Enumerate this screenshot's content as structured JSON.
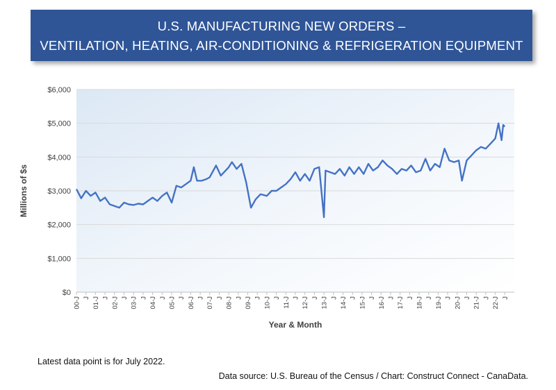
{
  "header": {
    "title_line1": "U.S. MANUFACTURING NEW ORDERS –",
    "title_line2": "VENTILATION, HEATING, AIR-CONDITIONING & REFRIGERATION EQUIPMENT"
  },
  "footer": {
    "note": "Latest data point is for July 2022.",
    "source": "Data source: U.S. Bureau of the Census / Chart: Construct Connect - CanaData."
  },
  "colors": {
    "title_bg": "#2f5597",
    "line": "#4472c4",
    "grid": "#d9d9d9"
  },
  "chart_data": {
    "type": "line",
    "xlabel": "Year & Month",
    "ylabel": "Millions of $s",
    "ylim": [
      0,
      6000
    ],
    "yticks": [
      0,
      1000,
      2000,
      3000,
      4000,
      5000,
      6000
    ],
    "ytick_labels": [
      "$0",
      "$1,000",
      "$2,000",
      "$3,000",
      "$4,000",
      "$5,000",
      "$6,000"
    ],
    "xtick_labels": [
      "00-J",
      "J",
      "01-J",
      "J",
      "02-J",
      "J",
      "03-J",
      "J",
      "04-J",
      "J",
      "05-J",
      "J",
      "06-J",
      "J",
      "07-J",
      "J",
      "08-J",
      "J",
      "09-J",
      "J",
      "10-J",
      "J",
      "11-J",
      "J",
      "12-J",
      "J",
      "13-J",
      "J",
      "14-J",
      "J",
      "15-J",
      "J",
      "16-J",
      "J",
      "17-J",
      "J",
      "18-J",
      "J",
      "19-J",
      "J",
      "20-J",
      "J",
      "21-J",
      "J",
      "22-J",
      "J"
    ],
    "grid": true,
    "legend": "none",
    "x_start": "2000-01",
    "x_end": "2022-07",
    "series": [
      {
        "anchors": [
          [
            "2000-01",
            3050
          ],
          [
            "2000-04",
            2780
          ],
          [
            "2000-07",
            3000
          ],
          [
            "2000-10",
            2850
          ],
          [
            "2001-01",
            2950
          ],
          [
            "2001-04",
            2700
          ],
          [
            "2001-07",
            2800
          ],
          [
            "2001-10",
            2600
          ],
          [
            "2002-01",
            2550
          ],
          [
            "2002-04",
            2500
          ],
          [
            "2002-07",
            2650
          ],
          [
            "2002-10",
            2600
          ],
          [
            "2003-01",
            2580
          ],
          [
            "2003-04",
            2620
          ],
          [
            "2003-07",
            2600
          ],
          [
            "2003-10",
            2700
          ],
          [
            "2004-01",
            2800
          ],
          [
            "2004-04",
            2700
          ],
          [
            "2004-07",
            2850
          ],
          [
            "2004-10",
            2950
          ],
          [
            "2005-01",
            2650
          ],
          [
            "2005-04",
            3150
          ],
          [
            "2005-07",
            3100
          ],
          [
            "2005-10",
            3200
          ],
          [
            "2006-01",
            3300
          ],
          [
            "2006-03",
            3700
          ],
          [
            "2006-05",
            3300
          ],
          [
            "2006-08",
            3300
          ],
          [
            "2006-11",
            3350
          ],
          [
            "2007-01",
            3400
          ],
          [
            "2007-05",
            3750
          ],
          [
            "2007-08",
            3450
          ],
          [
            "2007-11",
            3600
          ],
          [
            "2008-01",
            3700
          ],
          [
            "2008-03",
            3850
          ],
          [
            "2008-06",
            3650
          ],
          [
            "2008-09",
            3800
          ],
          [
            "2008-12",
            3250
          ],
          [
            "2009-03",
            2500
          ],
          [
            "2009-06",
            2750
          ],
          [
            "2009-09",
            2900
          ],
          [
            "2010-01",
            2850
          ],
          [
            "2010-04",
            3000
          ],
          [
            "2010-07",
            3000
          ],
          [
            "2010-10",
            3100
          ],
          [
            "2011-01",
            3200
          ],
          [
            "2011-04",
            3350
          ],
          [
            "2011-07",
            3550
          ],
          [
            "2011-10",
            3300
          ],
          [
            "2012-01",
            3500
          ],
          [
            "2012-04",
            3300
          ],
          [
            "2012-07",
            3650
          ],
          [
            "2012-10",
            3700
          ],
          [
            "2013-01",
            2220
          ],
          [
            "2013-02",
            3600
          ],
          [
            "2013-05",
            3550
          ],
          [
            "2013-08",
            3500
          ],
          [
            "2013-11",
            3650
          ],
          [
            "2014-02",
            3450
          ],
          [
            "2014-05",
            3700
          ],
          [
            "2014-08",
            3500
          ],
          [
            "2014-11",
            3700
          ],
          [
            "2015-02",
            3500
          ],
          [
            "2015-05",
            3800
          ],
          [
            "2015-08",
            3600
          ],
          [
            "2015-11",
            3700
          ],
          [
            "2016-02",
            3900
          ],
          [
            "2016-05",
            3750
          ],
          [
            "2016-08",
            3650
          ],
          [
            "2016-11",
            3500
          ],
          [
            "2017-02",
            3650
          ],
          [
            "2017-05",
            3600
          ],
          [
            "2017-08",
            3750
          ],
          [
            "2017-11",
            3550
          ],
          [
            "2018-02",
            3600
          ],
          [
            "2018-05",
            3950
          ],
          [
            "2018-08",
            3600
          ],
          [
            "2018-11",
            3800
          ],
          [
            "2019-02",
            3700
          ],
          [
            "2019-05",
            4250
          ],
          [
            "2019-08",
            3900
          ],
          [
            "2019-11",
            3850
          ],
          [
            "2020-02",
            3900
          ],
          [
            "2020-04",
            3300
          ],
          [
            "2020-07",
            3900
          ],
          [
            "2020-10",
            4050
          ],
          [
            "2021-01",
            4200
          ],
          [
            "2021-04",
            4300
          ],
          [
            "2021-07",
            4250
          ],
          [
            "2021-10",
            4400
          ],
          [
            "2022-01",
            4550
          ],
          [
            "2022-03",
            5000
          ],
          [
            "2022-05",
            4500
          ],
          [
            "2022-06",
            4950
          ],
          [
            "2022-07",
            4900
          ]
        ]
      }
    ]
  }
}
